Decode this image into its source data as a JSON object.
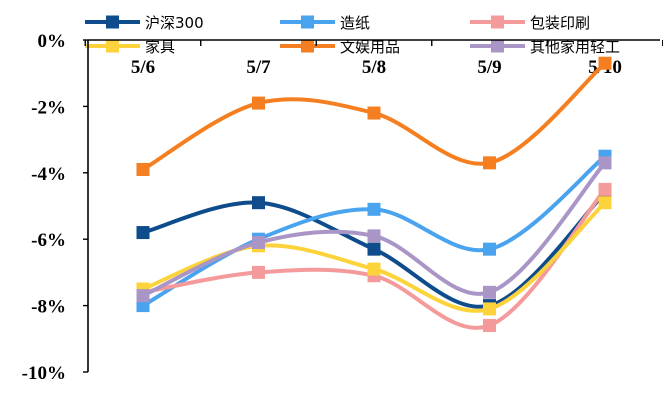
{
  "chart_data": {
    "type": "line",
    "title": "",
    "xlabel": "",
    "ylabel": "",
    "categories": [
      "5/6",
      "5/7",
      "5/8",
      "5/9",
      "5/10"
    ],
    "ylim": [
      -10,
      0
    ],
    "y_ticks": [
      0,
      -2,
      -4,
      -6,
      -8,
      -10
    ],
    "y_tick_labels": [
      "0%",
      "-2%",
      "-4%",
      "-6%",
      "-8%",
      "-10%"
    ],
    "grid": false,
    "legend_position": "top",
    "series": [
      {
        "name": "沪深300",
        "color": "#0e4c8c",
        "values": [
          -5.8,
          -4.9,
          -6.3,
          -8.0,
          -4.6
        ]
      },
      {
        "name": "造纸",
        "color": "#4aa3ef",
        "values": [
          -8.0,
          -6.0,
          -5.1,
          -6.3,
          -3.5
        ]
      },
      {
        "name": "包装印刷",
        "color": "#f59a9a",
        "values": [
          -7.6,
          -7.0,
          -7.1,
          -8.6,
          -4.5
        ]
      },
      {
        "name": "家具",
        "color": "#fcd33a",
        "values": [
          -7.5,
          -6.2,
          -6.9,
          -8.1,
          -4.9
        ]
      },
      {
        "name": "文娱用品",
        "color": "#f57f20",
        "values": [
          -3.9,
          -1.9,
          -2.2,
          -3.7,
          -0.7
        ]
      },
      {
        "name": "其他家用轻工",
        "color": "#a995c6",
        "values": [
          -7.7,
          -6.1,
          -5.9,
          -7.6,
          -3.7
        ]
      }
    ]
  }
}
